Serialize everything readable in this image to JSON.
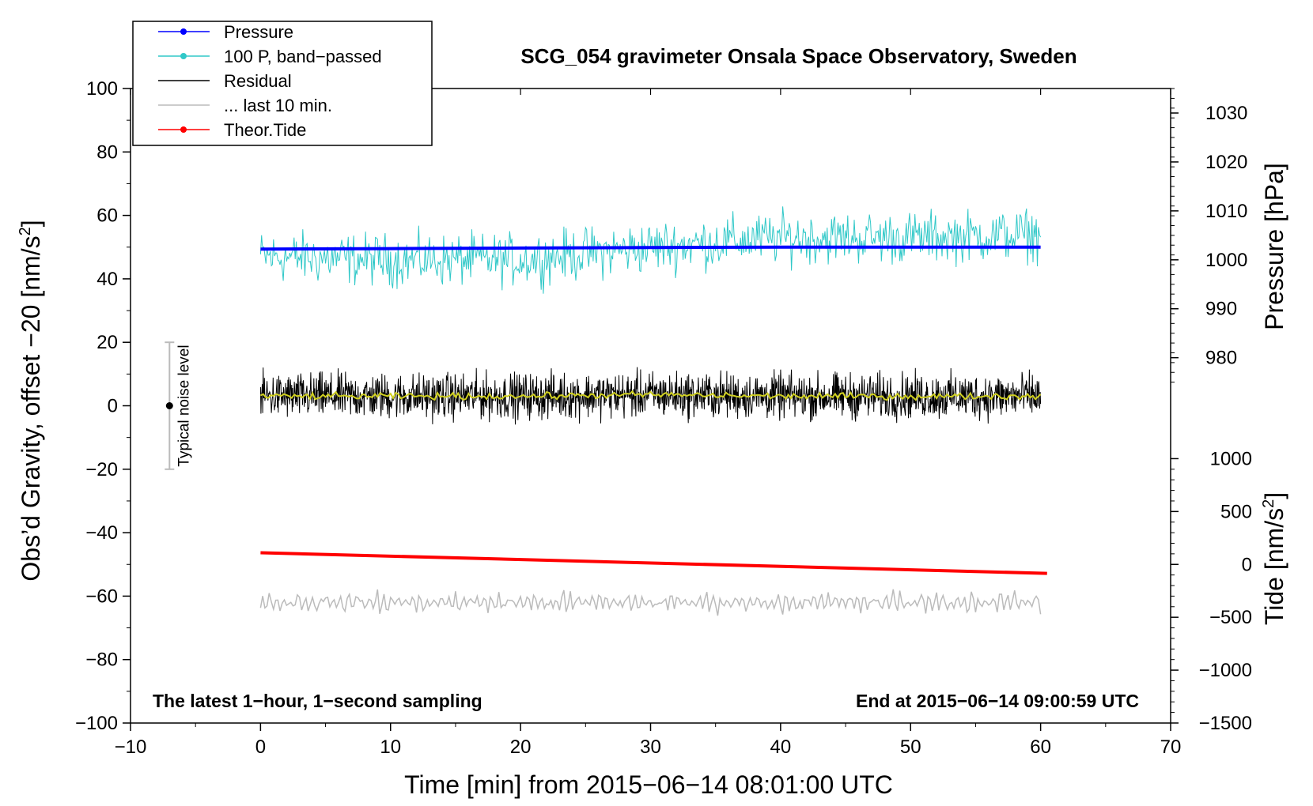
{
  "chart_data": {
    "type": "line",
    "title": "SCG_054 gravimeter Onsala Space Observatory, Sweden",
    "xlabel": "Time [min] from 2015−06−14 08:01:00 UTC",
    "ylabel_left": "Obs’d Gravity, offset −20 [nm/s",
    "ylabel_left_sup": "2",
    "ylabel_left_close": "]",
    "ylabel_right_pressure": "Pressure [hPa]",
    "ylabel_right_tide": "Tide [nm/s",
    "ylabel_right_tide_sup": "2",
    "ylabel_right_tide_close": "]",
    "xlim": [
      -10,
      70
    ],
    "ylim": [
      -100,
      100
    ],
    "x_ticks": [
      -10,
      0,
      10,
      20,
      30,
      40,
      50,
      60,
      70
    ],
    "x_tick_labels": [
      "−10",
      "0",
      "10",
      "20",
      "30",
      "40",
      "50",
      "60",
      "70"
    ],
    "y_ticks": [
      100,
      80,
      60,
      40,
      20,
      0,
      -20,
      -40,
      -60,
      -80,
      -100
    ],
    "y_tick_labels": [
      "100",
      "80",
      "60",
      "40",
      "20",
      "0",
      "−20",
      "−40",
      "−60",
      "−80",
      "−100"
    ],
    "pressure_axis": {
      "ticks": [
        980,
        990,
        1000,
        1010,
        1020,
        1030
      ],
      "tick_labels": [
        "980",
        "990",
        "1000",
        "1010",
        "1020",
        "1030"
      ],
      "gravity_equiv_at_1000": 46.0,
      "gravity_per_hpa": 1.5425
    },
    "tide_axis": {
      "ticks": [
        1000,
        500,
        0,
        -500,
        -1000,
        -1500
      ],
      "tick_labels": [
        "1000",
        "500",
        "0",
        "−500",
        "−1000",
        "−1500"
      ],
      "gravity_equiv_at_0": -50.0,
      "gravity_per_unit": 0.03333
    },
    "legend_position": "top-left",
    "legend": [
      {
        "label": "Pressure",
        "color": "#0000ff",
        "marker": true
      },
      {
        "label": "100 P, band−passed",
        "color": "#30c8c8",
        "marker": true
      },
      {
        "label": "Residual",
        "color": "#000000",
        "marker": false
      },
      {
        "label": "... last 10 min.",
        "color": "#bbbbbb",
        "marker": false
      },
      {
        "label": "Theor.Tide",
        "color": "#ff0000",
        "marker": true
      }
    ],
    "series": [
      {
        "key": "pressure",
        "x": [
          0,
          10,
          20,
          30,
          40,
          50,
          60
        ],
        "y": [
          1002.2,
          1002.3,
          1002.4,
          1002.5,
          1002.6,
          1002.6,
          1002.6
        ],
        "color": "#0000ff"
      },
      {
        "key": "band_passed",
        "x": [
          0,
          10,
          20,
          30,
          40,
          50,
          60
        ],
        "y": [
          47,
          46,
          46,
          50,
          53,
          53,
          54
        ],
        "amplitude": 4,
        "color": "#30c8c8"
      },
      {
        "key": "residual",
        "x": [
          0,
          10,
          20,
          30,
          40,
          50,
          60
        ],
        "y": [
          3,
          3,
          3,
          3.5,
          3,
          3,
          3
        ],
        "amplitude": 3.5,
        "color": "#000000"
      },
      {
        "key": "smoothed_residual",
        "x": [
          0,
          10,
          20,
          30,
          40,
          50,
          60
        ],
        "y": [
          3,
          3,
          3,
          3.5,
          3,
          3,
          3
        ],
        "color": "#d0d020"
      },
      {
        "key": "last_10_min",
        "x": [
          0,
          10,
          20,
          30,
          40,
          50,
          60
        ],
        "y": [
          -62,
          -62,
          -62,
          -62,
          -62,
          -62,
          -62
        ],
        "amplitude": 3,
        "color": "#bbbbbb"
      },
      {
        "key": "theor_tide",
        "x": [
          0,
          60.5
        ],
        "y": [
          110,
          -85
        ],
        "color": "#ff0000"
      }
    ],
    "noise_bar": {
      "x": -7,
      "center": 0,
      "low": -20,
      "high": 20,
      "label": "Typical noise level"
    },
    "annotations": {
      "left_note": "The latest 1−hour, 1−second sampling",
      "right_note": "End at 2015−06−14 09:00:59 UTC"
    }
  }
}
